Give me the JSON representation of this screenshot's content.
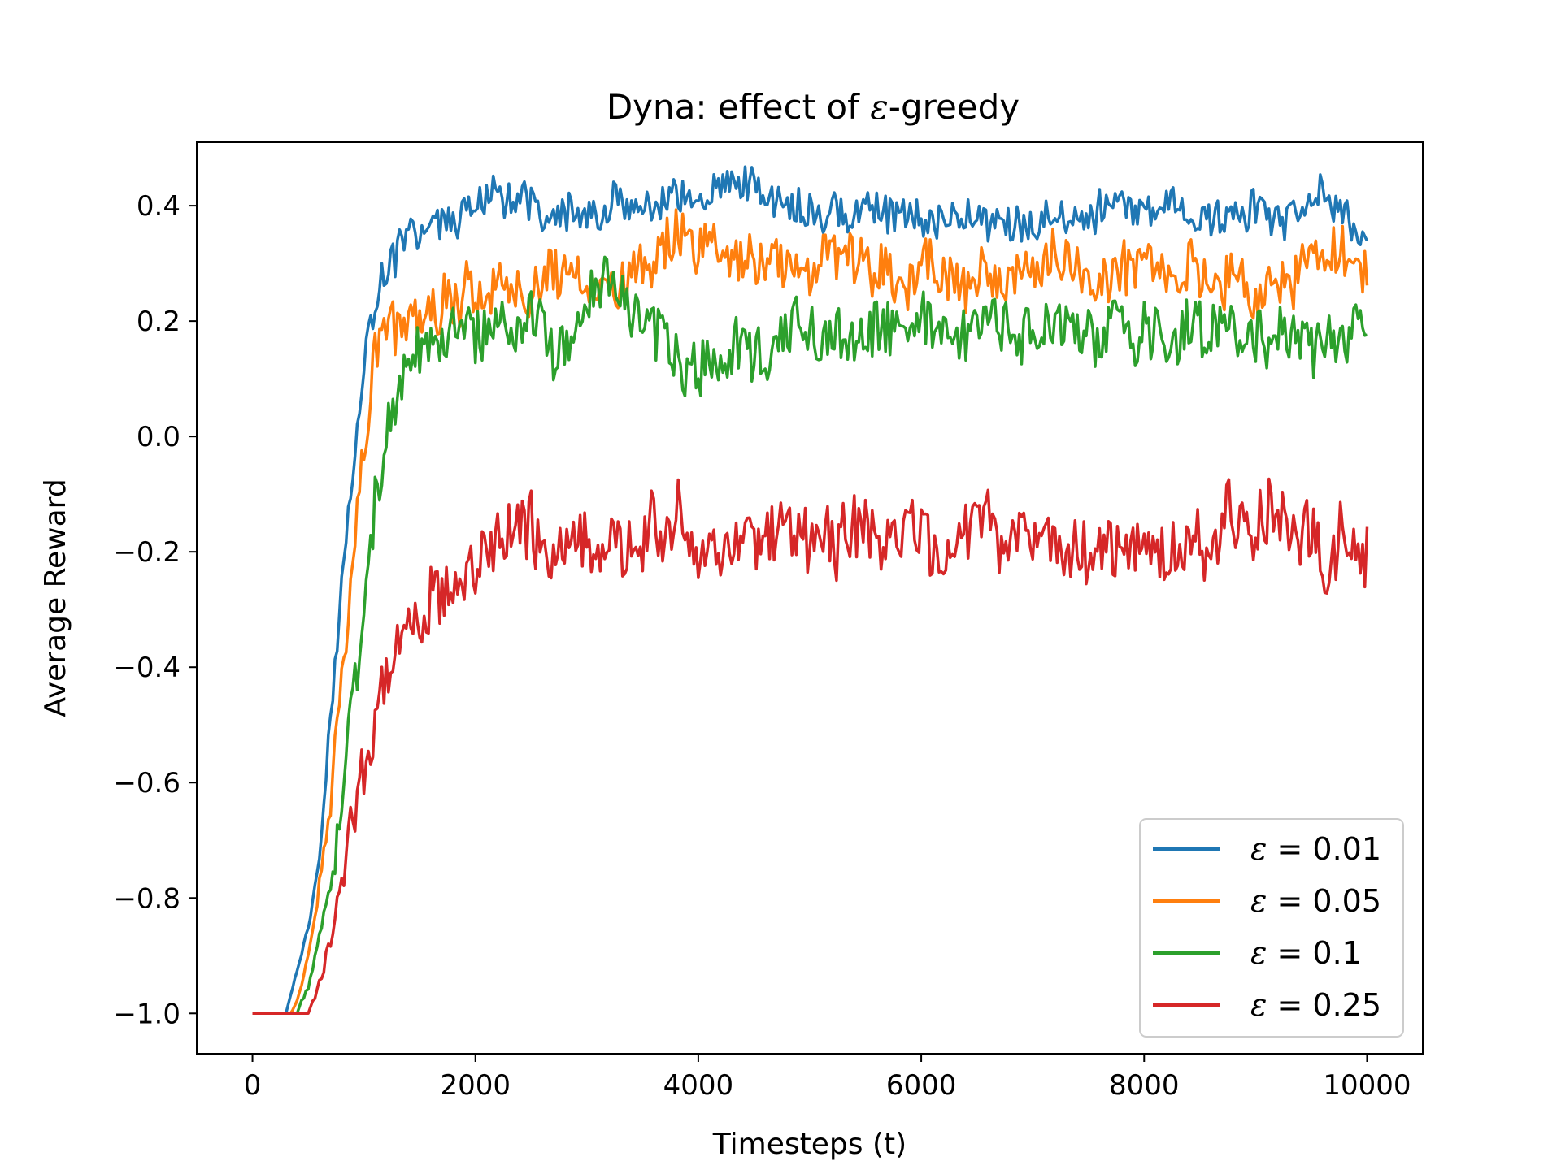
{
  "chart_data": {
    "type": "line",
    "title_prefix": "Dyna: effect of ",
    "title_symbol": "ε",
    "title_suffix": "-greedy",
    "xlabel": "Timesteps (t)",
    "ylabel": "Average Reward",
    "xlim": [
      -500,
      10500
    ],
    "ylim": [
      -1.07,
      0.51
    ],
    "xticks": [
      0,
      2000,
      4000,
      6000,
      8000,
      10000
    ],
    "xtick_labels": [
      "0",
      "2000",
      "4000",
      "6000",
      "8000",
      "10000"
    ],
    "yticks": [
      -1.0,
      -0.8,
      -0.6,
      -0.4,
      -0.2,
      0.0,
      0.2,
      0.4
    ],
    "ytick_labels": [
      "−1.0",
      "−0.8",
      "−0.6",
      "−0.4",
      "−0.2",
      "0.0",
      "0.2",
      "0.4"
    ],
    "grid": false,
    "legend_position": "lower-right",
    "series": [
      {
        "name_symbol": "ε",
        "name_rest": " = 0.01",
        "color": "#1f77b4",
        "amplitude": 0.04,
        "points": [
          [
            0,
            -1.0
          ],
          [
            300,
            -1.0
          ],
          [
            400,
            -0.92
          ],
          [
            500,
            -0.85
          ],
          [
            600,
            -0.7
          ],
          [
            700,
            -0.48
          ],
          [
            800,
            -0.25
          ],
          [
            900,
            -0.05
          ],
          [
            1000,
            0.12
          ],
          [
            1100,
            0.24
          ],
          [
            1200,
            0.28
          ],
          [
            1400,
            0.33
          ],
          [
            1600,
            0.36
          ],
          [
            1800,
            0.37
          ],
          [
            2000,
            0.38
          ],
          [
            3000,
            0.38
          ],
          [
            4000,
            0.38
          ],
          [
            5000,
            0.38
          ],
          [
            6000,
            0.38
          ],
          [
            7000,
            0.38
          ],
          [
            8000,
            0.38
          ],
          [
            9000,
            0.38
          ],
          [
            9800,
            0.38
          ],
          [
            10000,
            0.34
          ]
        ]
      },
      {
        "name_symbol": "ε",
        "name_rest": " = 0.05",
        "color": "#ff7f0e",
        "amplitude": 0.055,
        "points": [
          [
            0,
            -1.0
          ],
          [
            350,
            -1.0
          ],
          [
            450,
            -0.95
          ],
          [
            550,
            -0.85
          ],
          [
            650,
            -0.7
          ],
          [
            750,
            -0.52
          ],
          [
            850,
            -0.32
          ],
          [
            950,
            -0.1
          ],
          [
            1050,
            0.05
          ],
          [
            1150,
            0.16
          ],
          [
            1300,
            0.2
          ],
          [
            1500,
            0.24
          ],
          [
            1700,
            0.27
          ],
          [
            2000,
            0.28
          ],
          [
            3000,
            0.28
          ],
          [
            4000,
            0.29
          ],
          [
            5000,
            0.29
          ],
          [
            6000,
            0.3
          ],
          [
            7000,
            0.29
          ],
          [
            8000,
            0.29
          ],
          [
            9000,
            0.28
          ],
          [
            9800,
            0.28
          ],
          [
            10000,
            0.26
          ]
        ]
      },
      {
        "name_symbol": "ε",
        "name_rest": " = 0.1",
        "color": "#2ca02c",
        "amplitude": 0.06,
        "points": [
          [
            0,
            -1.0
          ],
          [
            400,
            -1.0
          ],
          [
            500,
            -0.95
          ],
          [
            600,
            -0.88
          ],
          [
            700,
            -0.78
          ],
          [
            800,
            -0.6
          ],
          [
            900,
            -0.42
          ],
          [
            1000,
            -0.25
          ],
          [
            1100,
            -0.1
          ],
          [
            1200,
            0.0
          ],
          [
            1300,
            0.06
          ],
          [
            1500,
            0.12
          ],
          [
            1700,
            0.15
          ],
          [
            2000,
            0.16
          ],
          [
            3000,
            0.16
          ],
          [
            4000,
            0.16
          ],
          [
            5000,
            0.15
          ],
          [
            6000,
            0.16
          ],
          [
            7000,
            0.16
          ],
          [
            8000,
            0.16
          ],
          [
            9000,
            0.16
          ],
          [
            9800,
            0.16
          ],
          [
            10000,
            0.17
          ]
        ]
      },
      {
        "name_symbol": "ε",
        "name_rest": " = 0.25",
        "color": "#d62728",
        "amplitude": 0.07,
        "points": [
          [
            0,
            -1.0
          ],
          [
            500,
            -1.0
          ],
          [
            600,
            -0.95
          ],
          [
            700,
            -0.88
          ],
          [
            800,
            -0.78
          ],
          [
            900,
            -0.65
          ],
          [
            1000,
            -0.55
          ],
          [
            1100,
            -0.47
          ],
          [
            1200,
            -0.4
          ],
          [
            1400,
            -0.32
          ],
          [
            1600,
            -0.24
          ],
          [
            1800,
            -0.2
          ],
          [
            2000,
            -0.19
          ],
          [
            3000,
            -0.2
          ],
          [
            3500,
            -0.16
          ],
          [
            4000,
            -0.19
          ],
          [
            5000,
            -0.18
          ],
          [
            6000,
            -0.18
          ],
          [
            7000,
            -0.17
          ],
          [
            8000,
            -0.2
          ],
          [
            9000,
            -0.18
          ],
          [
            9800,
            -0.13
          ],
          [
            10000,
            -0.24
          ]
        ]
      }
    ]
  }
}
